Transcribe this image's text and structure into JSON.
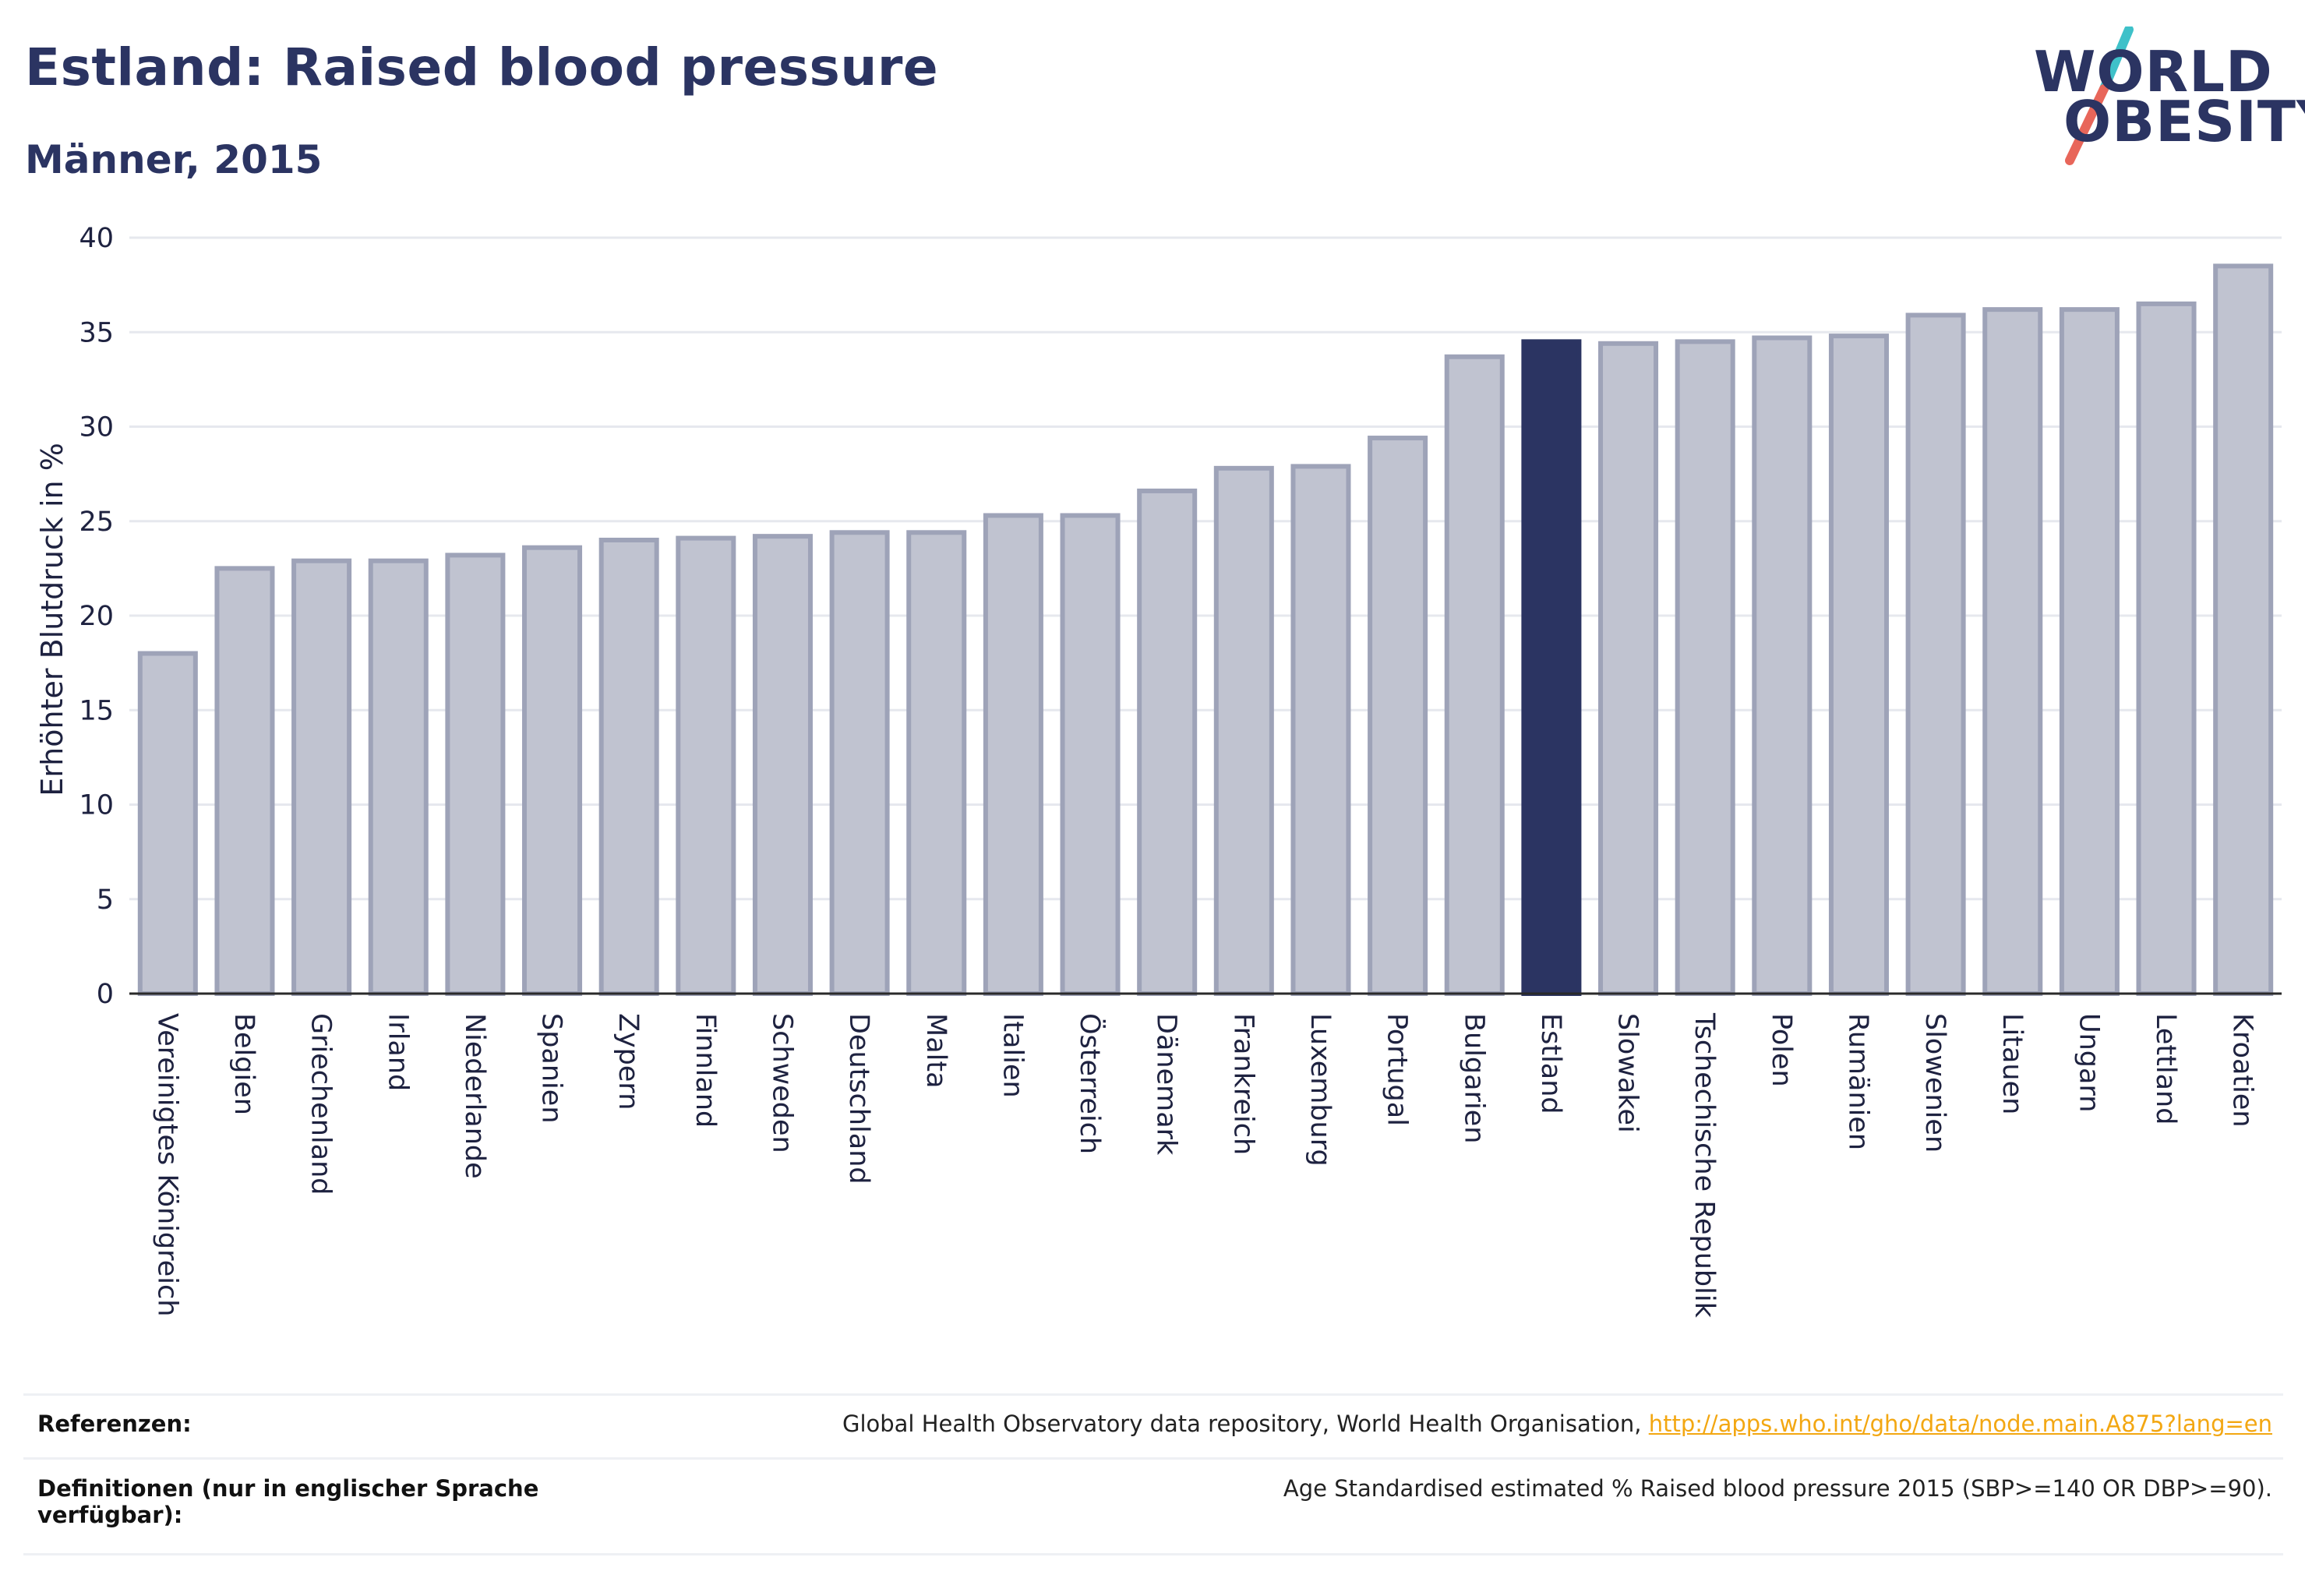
{
  "header": {
    "title": "Estland: Raised blood pressure",
    "subtitle": "Männer, 2015"
  },
  "logo": {
    "line1": "WORLD",
    "line2": "OBESITY",
    "text_color": "#2b3462",
    "accent_top": "#3fc1c9",
    "accent_bottom": "#e8665a"
  },
  "chart_data": {
    "type": "bar",
    "ylabel": "Erhöhter Blutdruck in %",
    "xlabel": "",
    "ylim": [
      0,
      40
    ],
    "yticks": [
      0,
      5,
      10,
      15,
      20,
      25,
      30,
      35,
      40
    ],
    "grid": true,
    "highlight": "Estland",
    "colors": {
      "bar": "#c0c3d0",
      "bar_border": "#9ea3b8",
      "highlight": "#2b3462",
      "grid": "#e6e8ee"
    },
    "categories": [
      "Vereinigtes Königreich",
      "Belgien",
      "Griechenland",
      "Irland",
      "Niederlande",
      "Spanien",
      "Zypern",
      "Finnland",
      "Schweden",
      "Deutschland",
      "Malta",
      "Italien",
      "Österreich",
      "Dänemark",
      "Frankreich",
      "Luxemburg",
      "Portugal",
      "Bulgarien",
      "Estland",
      "Slowakei",
      "Tschechische Republik",
      "Polen",
      "Rumänien",
      "Slowenien",
      "Litauen",
      "Ungarn",
      "Lettland",
      "Kroatien"
    ],
    "values": [
      18.0,
      22.5,
      22.9,
      22.9,
      23.2,
      23.6,
      24.0,
      24.1,
      24.2,
      24.4,
      24.4,
      25.3,
      25.3,
      26.6,
      27.8,
      27.9,
      29.4,
      33.7,
      34.5,
      34.4,
      34.5,
      34.7,
      34.8,
      35.9,
      36.2,
      36.2,
      36.5,
      38.5
    ]
  },
  "footer": {
    "references_label": "Referenzen:",
    "references_text": "Global Health Observatory data repository, World Health Organisation, ",
    "references_link": "http://apps.who.int/gho/data/node.main.A875?lang=en",
    "definitions_label_line1": "Definitionen (nur in englischer Sprache",
    "definitions_label_line2": "verfügbar):",
    "definitions_text": "Age Standardised estimated % Raised blood pressure 2015 (SBP>=140 OR DBP>=90)."
  }
}
